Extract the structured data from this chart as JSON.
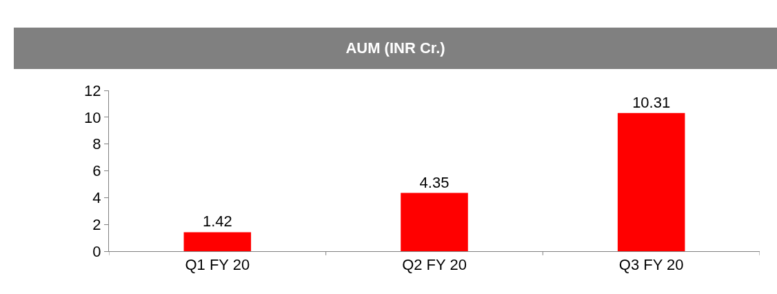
{
  "chart_data": {
    "type": "bar",
    "title": "AUM (INR Cr.)",
    "categories": [
      "Q1 FY 20",
      "Q2 FY 20",
      "Q3 FY 20"
    ],
    "values": [
      1.42,
      4.35,
      10.31
    ],
    "color": "#ff0000",
    "ylim": [
      0,
      12
    ],
    "yticks": [
      0,
      2,
      4,
      6,
      8,
      10,
      12
    ],
    "grid": false,
    "data_labels": true
  }
}
